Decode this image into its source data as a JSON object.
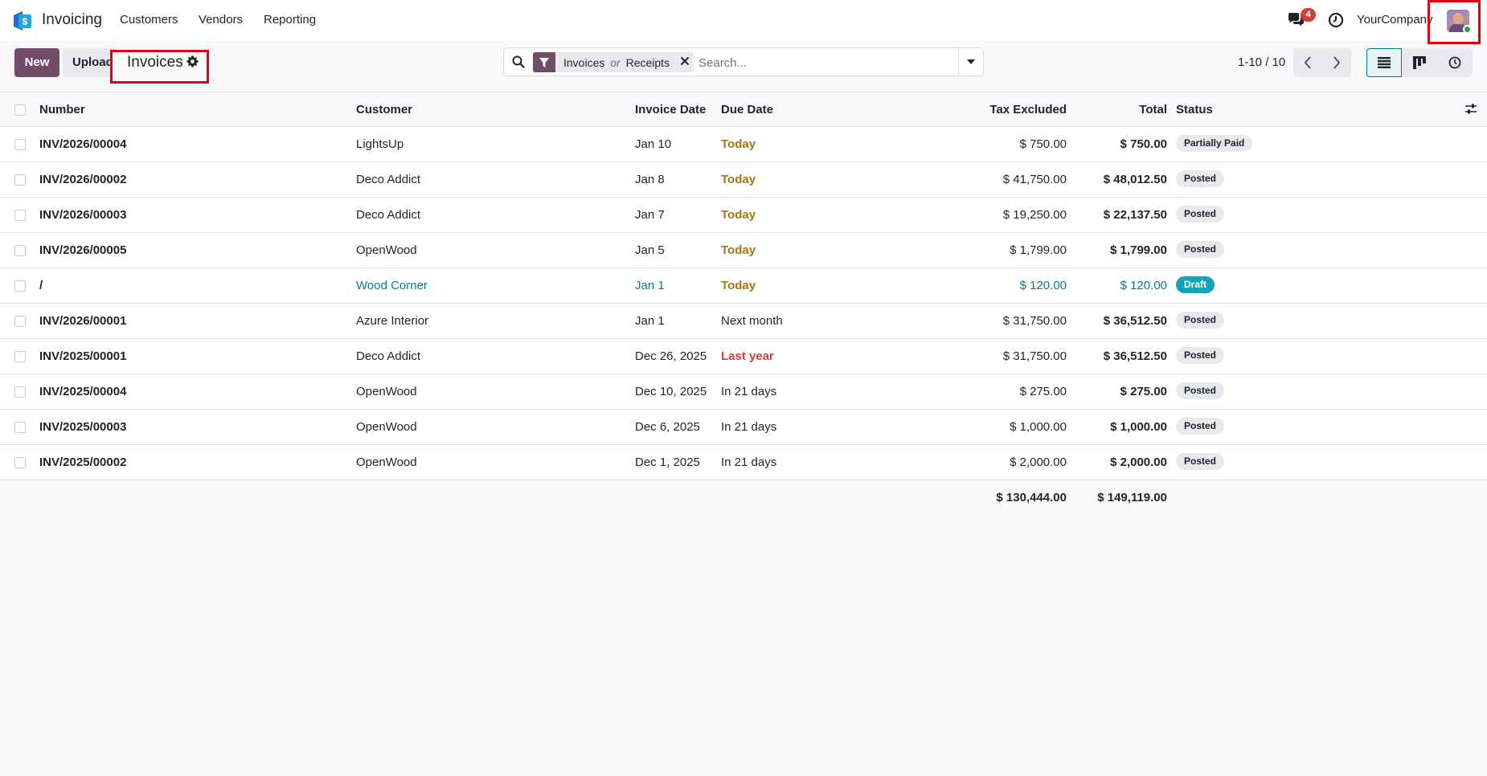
{
  "navbar": {
    "app_name": "Invoicing",
    "menu": [
      "Customers",
      "Vendors",
      "Reporting"
    ],
    "notification_count": "4",
    "company": "YourCompany"
  },
  "control_panel": {
    "new_label": "New",
    "upload_label": "Upload",
    "title": "Invoices",
    "facet": {
      "values": [
        "Invoices",
        "Receipts"
      ],
      "separator": "or"
    },
    "search_placeholder": "Search...",
    "pager": "1-10 / 10"
  },
  "table": {
    "headers": {
      "number": "Number",
      "customer": "Customer",
      "invoice_date": "Invoice Date",
      "due_date": "Due Date",
      "tax_excluded": "Tax Excluded",
      "total": "Total",
      "status": "Status"
    },
    "rows": [
      {
        "number": "INV/2026/00004",
        "customer": "LightsUp",
        "invoice_date": "Jan 10",
        "due_date": "Today",
        "due_style": "warning",
        "tax_excluded": "$ 750.00",
        "total": "$ 750.00",
        "status": "Partially Paid",
        "status_style": "neutral"
      },
      {
        "number": "INV/2026/00002",
        "customer": "Deco Addict",
        "invoice_date": "Jan 8",
        "due_date": "Today",
        "due_style": "warning",
        "tax_excluded": "$ 41,750.00",
        "total": "$ 48,012.50",
        "status": "Posted",
        "status_style": "neutral"
      },
      {
        "number": "INV/2026/00003",
        "customer": "Deco Addict",
        "invoice_date": "Jan 7",
        "due_date": "Today",
        "due_style": "warning",
        "tax_excluded": "$ 19,250.00",
        "total": "$ 22,137.50",
        "status": "Posted",
        "status_style": "neutral"
      },
      {
        "number": "INV/2026/00005",
        "customer": "OpenWood",
        "invoice_date": "Jan 5",
        "due_date": "Today",
        "due_style": "warning",
        "tax_excluded": "$ 1,799.00",
        "total": "$ 1,799.00",
        "status": "Posted",
        "status_style": "neutral"
      },
      {
        "number": "/",
        "customer": "Wood Corner",
        "invoice_date": "Jan 1",
        "due_date": "Today",
        "due_style": "warning",
        "tax_excluded": "$ 120.00",
        "total": "$ 120.00",
        "status": "Draft",
        "status_style": "draft"
      },
      {
        "number": "INV/2026/00001",
        "customer": "Azure Interior",
        "invoice_date": "Jan 1",
        "due_date": "Next month",
        "due_style": "normal",
        "tax_excluded": "$ 31,750.00",
        "total": "$ 36,512.50",
        "status": "Posted",
        "status_style": "neutral"
      },
      {
        "number": "INV/2025/00001",
        "customer": "Deco Addict",
        "invoice_date": "Dec 26, 2025",
        "due_date": "Last year",
        "due_style": "danger",
        "tax_excluded": "$ 31,750.00",
        "total": "$ 36,512.50",
        "status": "Posted",
        "status_style": "neutral"
      },
      {
        "number": "INV/2025/00004",
        "customer": "OpenWood",
        "invoice_date": "Dec 10, 2025",
        "due_date": "In 21 days",
        "due_style": "normal",
        "tax_excluded": "$ 275.00",
        "total": "$ 275.00",
        "status": "Posted",
        "status_style": "neutral"
      },
      {
        "number": "INV/2025/00003",
        "customer": "OpenWood",
        "invoice_date": "Dec 6, 2025",
        "due_date": "In 21 days",
        "due_style": "normal",
        "tax_excluded": "$ 1,000.00",
        "total": "$ 1,000.00",
        "status": "Posted",
        "status_style": "neutral"
      },
      {
        "number": "INV/2025/00002",
        "customer": "OpenWood",
        "invoice_date": "Dec 1, 2025",
        "due_date": "In 21 days",
        "due_style": "normal",
        "tax_excluded": "$ 2,000.00",
        "total": "$ 2,000.00",
        "status": "Posted",
        "status_style": "neutral"
      }
    ],
    "footer": {
      "tax_excluded_sum": "$ 130,444.00",
      "total_sum": "$ 149,119.00"
    }
  },
  "colors": {
    "brand": "#714b67",
    "accent": "#017e84",
    "warning": "#a8740f",
    "danger": "#d23f3a",
    "badge_neutral_bg": "#e7e9ed",
    "badge_draft_bg": "#17a2b8",
    "highlight": "#e0000f"
  },
  "icons": {
    "app_logo": "invoicing-app-icon",
    "chat": "chat-bubbles-icon",
    "activity": "clock-icon",
    "settings": "gear-icon",
    "search": "magnifier-icon",
    "filter": "funnel-icon",
    "remove": "close-icon",
    "dropdown": "caret-down-icon",
    "prev": "chevron-left-icon",
    "next": "chevron-right-icon",
    "list_view": "list-view-icon",
    "kanban_view": "kanban-view-icon",
    "activity_view": "activity-view-icon",
    "optional_columns": "sliders-icon"
  }
}
